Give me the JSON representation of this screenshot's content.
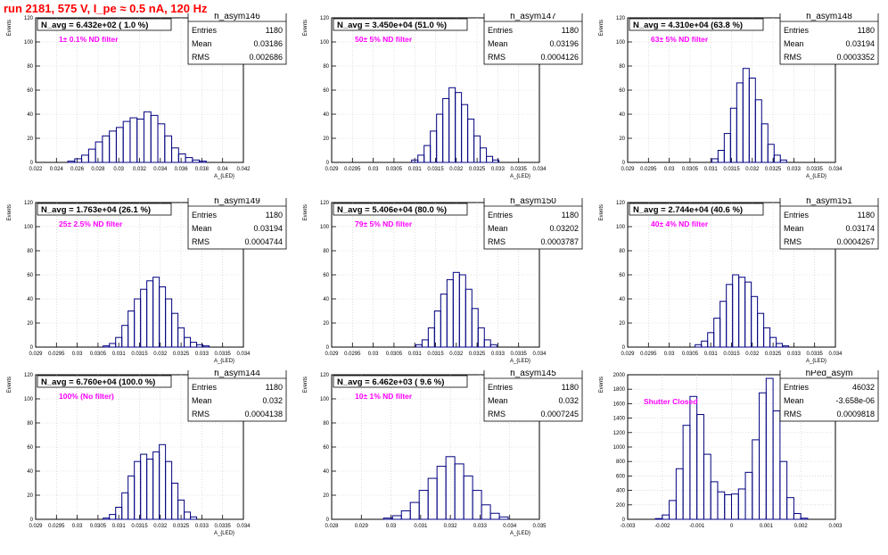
{
  "title": "run 2181,    575 V, I_pe ≈ 0.5 nA, 120 Hz",
  "colors": {
    "title": "#ff0000",
    "hist": "#000080",
    "annotation": "#ff00ff",
    "grid": "#c8c8c8"
  },
  "chart_data": [
    {
      "type": "bar",
      "name": "h_asym146",
      "header": "N_avg = 6.432e+02 ( 1.0 %)",
      "annotation": "1± 0.1% ND filter",
      "stats": {
        "entries": "1180",
        "mean": "0.03186",
        "rms": "0.002686"
      },
      "ylabel": "Events",
      "xlabel": "A_{LED}",
      "xlim": [
        0.021,
        0.042
      ],
      "ylim": [
        0,
        120
      ],
      "xticks": [
        "0.022",
        "0.024",
        "0.026",
        "0.028",
        "0.03",
        "0.032",
        "0.034",
        "0.036",
        "0.038",
        "0.04",
        "0.042"
      ],
      "yticks": [
        "0",
        "20",
        "40",
        "60",
        "80",
        "100",
        "120"
      ],
      "grid": true,
      "x": [
        0.0246,
        0.0253,
        0.026,
        0.0267,
        0.0274,
        0.0281,
        0.0288,
        0.0295,
        0.0302,
        0.0309,
        0.0316,
        0.0323,
        0.033,
        0.0337,
        0.0344,
        0.0351,
        0.0358,
        0.0365,
        0.0372,
        0.0379
      ],
      "values": [
        1,
        3,
        6,
        11,
        17,
        22,
        26,
        29,
        34,
        37,
        36,
        42,
        39,
        32,
        22,
        12,
        7,
        4,
        2,
        1
      ]
    },
    {
      "type": "bar",
      "name": "h_asym147",
      "header": "N_avg = 3.450e+04 (51.0 %)",
      "annotation": "50± 5% ND filter",
      "stats": {
        "entries": "1180",
        "mean": "0.03196",
        "rms": "0.0004126"
      },
      "ylabel": "Events",
      "xlabel": "A_{LED}",
      "xlim": [
        0.029,
        0.034
      ],
      "ylim": [
        0,
        120
      ],
      "xticks": [
        "0.029",
        "0.0295",
        "0.03",
        "0.0305",
        "0.031",
        "0.0315",
        "0.032",
        "0.0325",
        "0.033",
        "0.0335",
        "0.034"
      ],
      "yticks": [
        "0",
        "20",
        "40",
        "60",
        "80",
        "100",
        "120"
      ],
      "grid": true,
      "x": [
        0.031,
        0.03115,
        0.0313,
        0.03145,
        0.0316,
        0.03175,
        0.0319,
        0.03205,
        0.0322,
        0.03235,
        0.0325,
        0.03265,
        0.0328,
        0.03295
      ],
      "values": [
        2,
        6,
        14,
        26,
        40,
        53,
        62,
        58,
        48,
        36,
        22,
        12,
        5,
        2
      ]
    },
    {
      "type": "bar",
      "name": "h_asym148",
      "header": "N_avg = 4.310e+04 (63.8 %)",
      "annotation": "63± 5% ND filter",
      "stats": {
        "entries": "1180",
        "mean": "0.03194",
        "rms": "0.0003352"
      },
      "ylabel": "Events",
      "xlabel": "A_{LED}",
      "xlim": [
        0.029,
        0.034
      ],
      "ylim": [
        0,
        120
      ],
      "xticks": [
        "0.029",
        "0.0295",
        "0.03",
        "0.0305",
        "0.031",
        "0.0315",
        "0.032",
        "0.0325",
        "0.033",
        "0.0335",
        "0.034"
      ],
      "yticks": [
        "0",
        "20",
        "40",
        "60",
        "80",
        "100",
        "120"
      ],
      "grid": true,
      "x": [
        0.0311,
        0.03125,
        0.0314,
        0.03155,
        0.0317,
        0.03185,
        0.032,
        0.03215,
        0.0323,
        0.03245,
        0.0326,
        0.03275
      ],
      "values": [
        3,
        10,
        24,
        45,
        66,
        78,
        70,
        52,
        32,
        15,
        6,
        2
      ]
    },
    {
      "type": "bar",
      "name": "h_asym149",
      "header": "N_avg = 1.763e+04 (26.1 %)",
      "annotation": "25± 2.5% ND filter",
      "stats": {
        "entries": "1180",
        "mean": "0.03194",
        "rms": "0.0004744"
      },
      "ylabel": "Events",
      "xlabel": "A_{LED}",
      "xlim": [
        0.029,
        0.034
      ],
      "ylim": [
        0,
        120
      ],
      "xticks": [
        "0.029",
        "0.0295",
        "0.03",
        "0.0305",
        "0.031",
        "0.0315",
        "0.032",
        "0.0325",
        "0.033",
        "0.0335",
        "0.034"
      ],
      "yticks": [
        "0",
        "20",
        "40",
        "60",
        "80",
        "100",
        "120"
      ],
      "grid": true,
      "x": [
        0.0307,
        0.03085,
        0.031,
        0.03115,
        0.0313,
        0.03145,
        0.0316,
        0.03175,
        0.0319,
        0.03205,
        0.0322,
        0.03235,
        0.0325,
        0.03265,
        0.0328,
        0.03295,
        0.0331
      ],
      "values": [
        1,
        3,
        8,
        18,
        30,
        40,
        48,
        55,
        58,
        50,
        40,
        28,
        16,
        8,
        4,
        2,
        1
      ]
    },
    {
      "type": "bar",
      "name": "h_asym150",
      "header": "N_avg = 5.406e+04 (80.0 %)",
      "annotation": "79± 5% ND filter",
      "stats": {
        "entries": "1180",
        "mean": "0.03202",
        "rms": "0.0003787"
      },
      "ylabel": "Events",
      "xlabel": "A_{LED}",
      "xlim": [
        0.029,
        0.034
      ],
      "ylim": [
        0,
        120
      ],
      "xticks": [
        "0.029",
        "0.0295",
        "0.03",
        "0.0305",
        "0.031",
        "0.0315",
        "0.032",
        "0.0325",
        "0.033",
        "0.0335",
        "0.034"
      ],
      "yticks": [
        "0",
        "20",
        "40",
        "60",
        "80",
        "100",
        "120"
      ],
      "grid": true,
      "x": [
        0.0311,
        0.03125,
        0.0314,
        0.03155,
        0.0317,
        0.03185,
        0.032,
        0.03215,
        0.0323,
        0.03245,
        0.0326,
        0.03275,
        0.0329
      ],
      "values": [
        2,
        6,
        16,
        30,
        44,
        56,
        62,
        60,
        48,
        32,
        16,
        6,
        2
      ]
    },
    {
      "type": "bar",
      "name": "h_asym151",
      "header": "N_avg = 2.744e+04 (40.6 %)",
      "annotation": "40± 4% ND filter",
      "stats": {
        "entries": "1180",
        "mean": "0.03174",
        "rms": "0.0004267"
      },
      "ylabel": "Events",
      "xlabel": "A_{LED}",
      "xlim": [
        0.029,
        0.034
      ],
      "ylim": [
        0,
        120
      ],
      "xticks": [
        "0.029",
        "0.0295",
        "0.03",
        "0.0305",
        "0.031",
        "0.0315",
        "0.032",
        "0.0325",
        "0.033",
        "0.0335",
        "0.034"
      ],
      "yticks": [
        "0",
        "20",
        "40",
        "60",
        "80",
        "100",
        "120"
      ],
      "grid": true,
      "x": [
        0.0307,
        0.03085,
        0.031,
        0.03115,
        0.0313,
        0.03145,
        0.0316,
        0.03175,
        0.0319,
        0.03205,
        0.0322,
        0.03235,
        0.0325,
        0.03265,
        0.0328
      ],
      "values": [
        2,
        5,
        12,
        24,
        38,
        52,
        60,
        58,
        54,
        42,
        28,
        16,
        8,
        3,
        1
      ]
    },
    {
      "type": "bar",
      "name": "h_asym144",
      "header": "N_avg = 6.760e+04 (100.0 %)",
      "annotation": "100% (No filter)",
      "stats": {
        "entries": "1180",
        "mean": "0.032",
        "rms": "0.0004138"
      },
      "ylabel": "Events",
      "xlabel": "A_{LED}",
      "xlim": [
        0.029,
        0.034
      ],
      "ylim": [
        0,
        120
      ],
      "xticks": [
        "0.029",
        "0.0295",
        "0.03",
        "0.0305",
        "0.031",
        "0.0315",
        "0.032",
        "0.0325",
        "0.033",
        "0.0335",
        "0.034"
      ],
      "yticks": [
        "0",
        "20",
        "40",
        "60",
        "80",
        "100",
        "120"
      ],
      "grid": true,
      "x": [
        0.0307,
        0.03085,
        0.031,
        0.03115,
        0.0313,
        0.03145,
        0.0316,
        0.03175,
        0.0319,
        0.03205,
        0.0322,
        0.03235,
        0.0325,
        0.03265,
        0.0328
      ],
      "values": [
        1,
        4,
        10,
        22,
        36,
        48,
        54,
        50,
        56,
        62,
        48,
        30,
        16,
        6,
        2
      ]
    },
    {
      "type": "bar",
      "name": "h_asym145",
      "header": "N_avg = 6.462e+03 ( 9.6 %)",
      "annotation": "10± 1% ND filter",
      "stats": {
        "entries": "1180",
        "mean": "0.032",
        "rms": "0.0007245"
      },
      "ylabel": "Events",
      "xlabel": "A_{LED}",
      "xlim": [
        0.028,
        0.035
      ],
      "ylim": [
        0,
        120
      ],
      "xticks": [
        "0.028",
        "0.029",
        "0.03",
        "0.031",
        "0.032",
        "0.033",
        "0.034",
        "0.035"
      ],
      "yticks": [
        "0",
        "20",
        "40",
        "60",
        "80",
        "100",
        "120"
      ],
      "grid": true,
      "x": [
        0.0299,
        0.0302,
        0.0305,
        0.0308,
        0.0311,
        0.0314,
        0.0317,
        0.032,
        0.0323,
        0.0326,
        0.0329,
        0.0332,
        0.0335,
        0.0338
      ],
      "values": [
        1,
        3,
        7,
        14,
        24,
        34,
        44,
        52,
        46,
        36,
        24,
        12,
        5,
        2
      ]
    },
    {
      "type": "bar",
      "name": "hPed_asym",
      "header": "",
      "annotation": "Shutter Closed",
      "stats": {
        "entries": "46032",
        "mean": "-3.658e-06",
        "rms": "0.0009818"
      },
      "ylabel": "Events",
      "xlabel": "",
      "xlim": [
        -0.003,
        0.003
      ],
      "ylim": [
        0,
        2000
      ],
      "xticks": [
        "-0.003",
        "-0.002",
        "-0.001",
        "0",
        "0.001",
        "0.002",
        "0.003"
      ],
      "yticks": [
        "0",
        "200",
        "400",
        "600",
        "800",
        "1000",
        "1200",
        "1400",
        "1600",
        "1800",
        "2000"
      ],
      "grid": true,
      "x": [
        -0.0021,
        -0.0019,
        -0.0017,
        -0.0015,
        -0.0013,
        -0.0011,
        -0.0009,
        -0.0007,
        -0.0005,
        -0.0003,
        -0.0001,
        0.0001,
        0.0003,
        0.0005,
        0.0007,
        0.0009,
        0.0011,
        0.0013,
        0.0015,
        0.0017,
        0.0019,
        0.0021
      ],
      "values": [
        10,
        60,
        260,
        700,
        1300,
        1700,
        1450,
        900,
        520,
        380,
        340,
        350,
        420,
        650,
        1100,
        1750,
        1950,
        1500,
        800,
        300,
        80,
        15
      ]
    }
  ]
}
